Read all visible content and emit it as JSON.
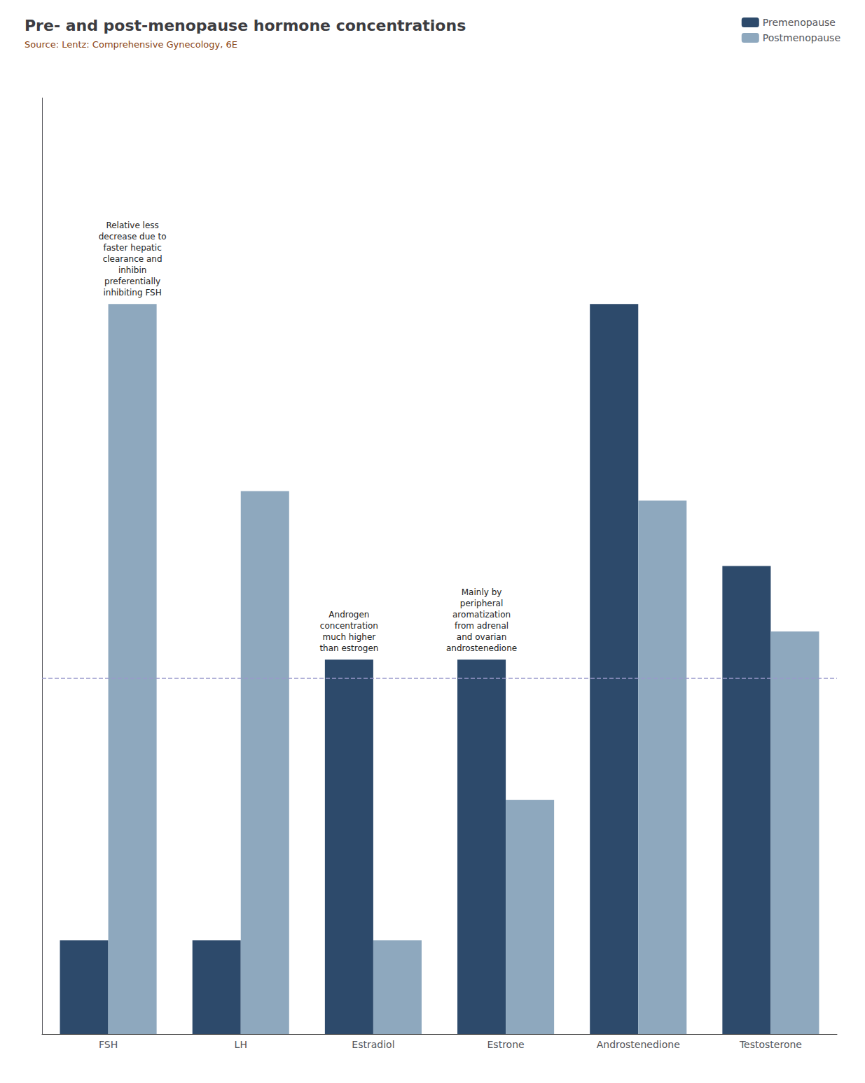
{
  "chart_data": {
    "type": "bar",
    "title": "Pre- and post-menopause hormone concentrations",
    "subtitle": "Source: Lentz: Comprehensive Gynecology, 6E",
    "categories": [
      "FSH",
      "LH",
      "Estradiol",
      "Estrone",
      "Androstenedione",
      "Testosterone"
    ],
    "series": [
      {
        "name": "Premenopause",
        "color": "#2d4a6b",
        "values": [
          0.1,
          0.1,
          0.4,
          0.4,
          0.78,
          0.5
        ]
      },
      {
        "name": "Postmenopause",
        "color": "#8ea8be",
        "values": [
          0.78,
          0.58,
          0.1,
          0.25,
          0.57,
          0.43
        ]
      }
    ],
    "ylim": [
      0,
      1.0
    ],
    "yticks": [],
    "tick_labels": "x",
    "grid": false,
    "legend": "top-right",
    "hlines": [
      {
        "y": 0.38,
        "line_style": "dashed",
        "color": "#9999cc"
      }
    ],
    "annotations": [
      {
        "text": "Relative less\ndecrease due to\nfaster hepatic\nclearance and\ninhibin\npreferentially\ninhibiting FSH",
        "category": "FSH",
        "series": "Postmenopause"
      },
      {
        "text": "Androgen\nconcentration\nmuch higher\nthan estrogen",
        "category": "Estradiol",
        "series": "Premenopause"
      },
      {
        "text": "Mainly by\nperipheral\naromatization\nfrom adrenal\nand ovarian\nandrostenedione",
        "category": "Estrone",
        "series": "Premenopause"
      }
    ]
  }
}
